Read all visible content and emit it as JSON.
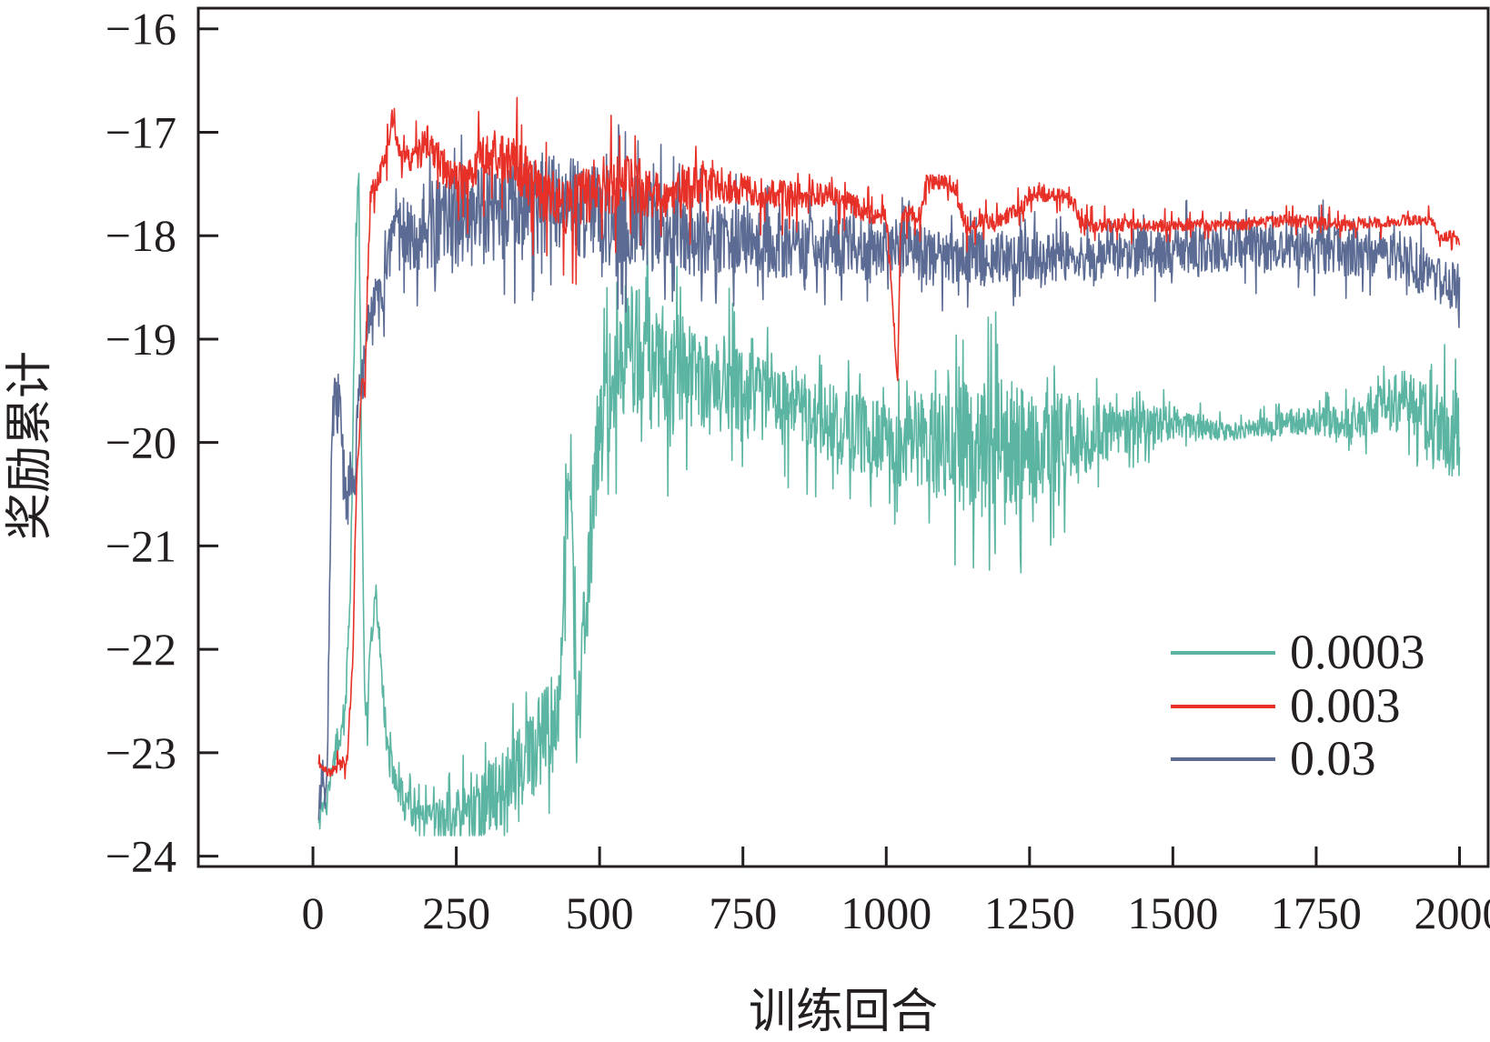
{
  "chart_data": {
    "type": "line",
    "title": "",
    "xlabel": "训练回合",
    "ylabel": "奖励累计",
    "xlim": [
      -200,
      2050
    ],
    "ylim": [
      -24.1,
      -15.8
    ],
    "xticks": [
      0,
      250,
      500,
      750,
      1000,
      1250,
      1500,
      1750,
      2000
    ],
    "xtick_labels": [
      "0",
      "250",
      "500",
      "750",
      "1000",
      "1250",
      "1500",
      "1750",
      "2000"
    ],
    "yticks": [
      -16,
      -17,
      -18,
      -19,
      -20,
      -21,
      -22,
      -23,
      -24
    ],
    "ytick_labels": [
      "−16",
      "−17",
      "−18",
      "−19",
      "−20",
      "−21",
      "−22",
      "−23",
      "−24"
    ],
    "grid": false,
    "legend_position": "bottom-right",
    "series": [
      {
        "name": "0.0003",
        "color": "#5bb5a2",
        "noise": [
          0.1,
          0.25,
          0.6,
          0.8,
          0.5,
          0.5,
          0.9,
          0.3,
          0.1,
          0.2,
          0.6
        ],
        "x": [
          10,
          25,
          40,
          55,
          65,
          75,
          80,
          85,
          90,
          95,
          100,
          110,
          120,
          130,
          150,
          175,
          200,
          250,
          300,
          350,
          400,
          430,
          440,
          450,
          460,
          480,
          500,
          550,
          600,
          700,
          800,
          900,
          1000,
          1100,
          1200,
          1300,
          1400,
          1500,
          1600,
          1700,
          1800,
          1900,
          1950,
          2000
        ],
        "values": [
          -23.6,
          -23.4,
          -23.0,
          -22.7,
          -21.5,
          -18.0,
          -17.5,
          -20.2,
          -22.5,
          -22.8,
          -22.0,
          -21.5,
          -22.2,
          -23.0,
          -23.4,
          -23.6,
          -23.7,
          -23.6,
          -23.5,
          -23.2,
          -22.9,
          -22.6,
          -21.0,
          -20.0,
          -23.0,
          -21.3,
          -19.8,
          -19.0,
          -19.3,
          -19.4,
          -19.6,
          -19.8,
          -20.0,
          -20.0,
          -20.1,
          -20.0,
          -19.9,
          -19.8,
          -19.9,
          -19.8,
          -19.8,
          -19.6,
          -19.8,
          -20.0
        ]
      },
      {
        "name": "0.003",
        "color": "#e63028",
        "noise": [
          0.05,
          0.4,
          0.6,
          0.3,
          0.2,
          0.15,
          0.12,
          0.12,
          0.1
        ],
        "x": [
          10,
          30,
          60,
          70,
          75,
          80,
          85,
          90,
          100,
          110,
          125,
          140,
          150,
          175,
          200,
          250,
          300,
          350,
          400,
          450,
          500,
          550,
          600,
          700,
          800,
          900,
          980,
          1000,
          1020,
          1025,
          1030,
          1060,
          1070,
          1120,
          1130,
          1140,
          1200,
          1240,
          1250,
          1300,
          1330,
          1340,
          1400,
          1500,
          1600,
          1700,
          1800,
          1900,
          1950,
          1960,
          1970,
          1990,
          2000
        ],
        "values": [
          -23.1,
          -23.2,
          -23.05,
          -22.0,
          -20.5,
          -20.0,
          -19.4,
          -19.5,
          -17.6,
          -17.5,
          -17.3,
          -16.8,
          -17.2,
          -17.3,
          -17.1,
          -17.5,
          -17.2,
          -17.3,
          -17.6,
          -17.7,
          -17.5,
          -17.5,
          -17.6,
          -17.5,
          -17.6,
          -17.6,
          -17.8,
          -17.8,
          -19.4,
          -17.9,
          -17.8,
          -17.8,
          -17.5,
          -17.5,
          -17.8,
          -17.9,
          -17.85,
          -17.7,
          -17.6,
          -17.6,
          -17.7,
          -17.9,
          -17.9,
          -17.9,
          -17.9,
          -17.85,
          -17.9,
          -17.85,
          -17.85,
          -17.95,
          -18.0,
          -18.0,
          -18.1
        ]
      },
      {
        "name": "0.03",
        "color": "#5b6b93",
        "noise": [
          0.25,
          0.6,
          0.6,
          0.4,
          0.35,
          0.3,
          0.3,
          0.3,
          0.3
        ],
        "x": [
          10,
          15,
          20,
          25,
          30,
          35,
          40,
          45,
          50,
          55,
          60,
          65,
          70,
          75,
          80,
          90,
          100,
          120,
          150,
          200,
          250,
          300,
          350,
          400,
          450,
          500,
          600,
          700,
          800,
          900,
          1000,
          1100,
          1200,
          1300,
          1400,
          1500,
          1600,
          1700,
          1800,
          1900,
          1950,
          2000
        ],
        "values": [
          -23.6,
          -23.2,
          -23.4,
          -23.0,
          -21.0,
          -19.4,
          -19.7,
          -19.5,
          -20.0,
          -20.4,
          -20.6,
          -20.3,
          -20.5,
          -20.1,
          -19.6,
          -19.2,
          -18.8,
          -18.5,
          -18.0,
          -17.9,
          -17.9,
          -17.8,
          -17.8,
          -17.7,
          -17.7,
          -17.8,
          -17.9,
          -18.0,
          -18.1,
          -18.1,
          -18.1,
          -18.2,
          -18.2,
          -18.2,
          -18.2,
          -18.15,
          -18.1,
          -18.1,
          -18.15,
          -18.2,
          -18.4,
          -18.5
        ]
      }
    ]
  }
}
